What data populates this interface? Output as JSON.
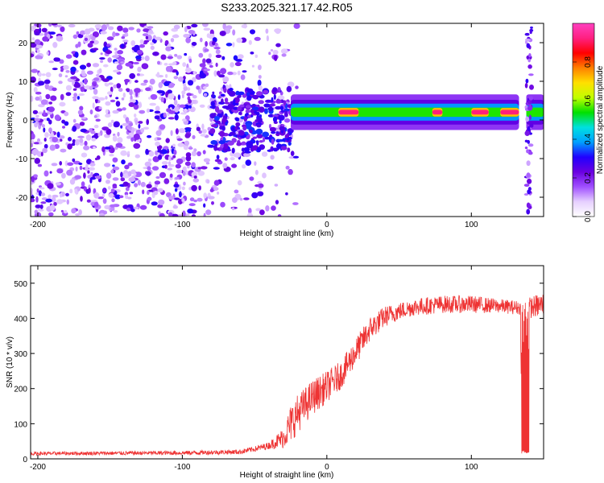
{
  "figure_title": "S233.2025.321.17.42.R05",
  "chart_data": [
    {
      "type": "heatmap",
      "title": "S233.2025.321.17.42.R05",
      "xlabel": "Height of straight line (km)",
      "ylabel": "Frequency (Hz)",
      "xlim": [
        -205,
        150
      ],
      "ylim": [
        -25,
        25
      ],
      "x_ticks": [
        -200,
        -100,
        0,
        100
      ],
      "x_tick_labels": [
        "-200",
        "-100",
        "0",
        "100"
      ],
      "y_ticks": [
        -20,
        -10,
        0,
        10,
        20
      ],
      "y_tick_labels": [
        "-20",
        "-10",
        "0",
        "10",
        "20"
      ],
      "colorbar": {
        "label": "Normalized spectral amplitude",
        "range": [
          0.0,
          1.0
        ],
        "ticks": [
          0.0,
          0.2,
          0.4,
          0.6,
          0.8
        ],
        "tick_labels": [
          "0.0",
          "0.2",
          "0.4",
          "0.6",
          "0.8"
        ],
        "colormap": [
          "#ffffff",
          "#e6d0ff",
          "#a050ff",
          "#6a00e0",
          "#2000ff",
          "#00a0ff",
          "#00e0e0",
          "#00e000",
          "#c0ff00",
          "#ffe000",
          "#ff8000",
          "#ff0000",
          "#ff2080",
          "#ff40c0"
        ]
      },
      "features": {
        "noise_region_km": [
          -205,
          -20
        ],
        "dense_cluster_km": [
          -80,
          -25
        ],
        "dense_cluster_freq_hz": [
          -8,
          8
        ],
        "signal_band_freq_hz": 2,
        "signal_band_km": [
          -25,
          150
        ],
        "peak_segments_km": [
          [
            8,
            22
          ],
          [
            73,
            80
          ],
          [
            100,
            112
          ],
          [
            120,
            133
          ]
        ],
        "gap_km": [
          133,
          138
        ],
        "end_scatter_km": [
          138,
          142
        ]
      }
    },
    {
      "type": "line",
      "xlabel": "Height of straight line (km)",
      "ylabel": "SNR (10 * v/v)",
      "xlim": [
        -205,
        150
      ],
      "ylim": [
        0,
        550
      ],
      "x_ticks": [
        -200,
        -100,
        0,
        100
      ],
      "x_tick_labels": [
        "-200",
        "-100",
        "0",
        "100"
      ],
      "y_ticks": [
        0,
        100,
        200,
        300,
        400,
        500
      ],
      "y_tick_labels": [
        "0",
        "100",
        "200",
        "300",
        "400",
        "500"
      ],
      "series": [
        {
          "name": "SNR",
          "color": "#ee3333",
          "x": [
            -205,
            -100,
            -60,
            -50,
            -40,
            -30,
            -25,
            -20,
            -10,
            0,
            10,
            20,
            30,
            40,
            50,
            60,
            80,
            100,
            120,
            134,
            135,
            139,
            140,
            150
          ],
          "y": [
            15,
            17,
            20,
            28,
            38,
            60,
            100,
            130,
            175,
            205,
            240,
            305,
            370,
            405,
            420,
            432,
            440,
            440,
            435,
            430,
            15,
            15,
            430,
            440
          ],
          "noise": [
            5,
            6,
            7,
            8,
            10,
            30,
            55,
            55,
            50,
            45,
            40,
            40,
            35,
            30,
            25,
            25,
            25,
            25,
            20,
            20,
            0,
            0,
            30,
            35
          ]
        }
      ]
    }
  ]
}
